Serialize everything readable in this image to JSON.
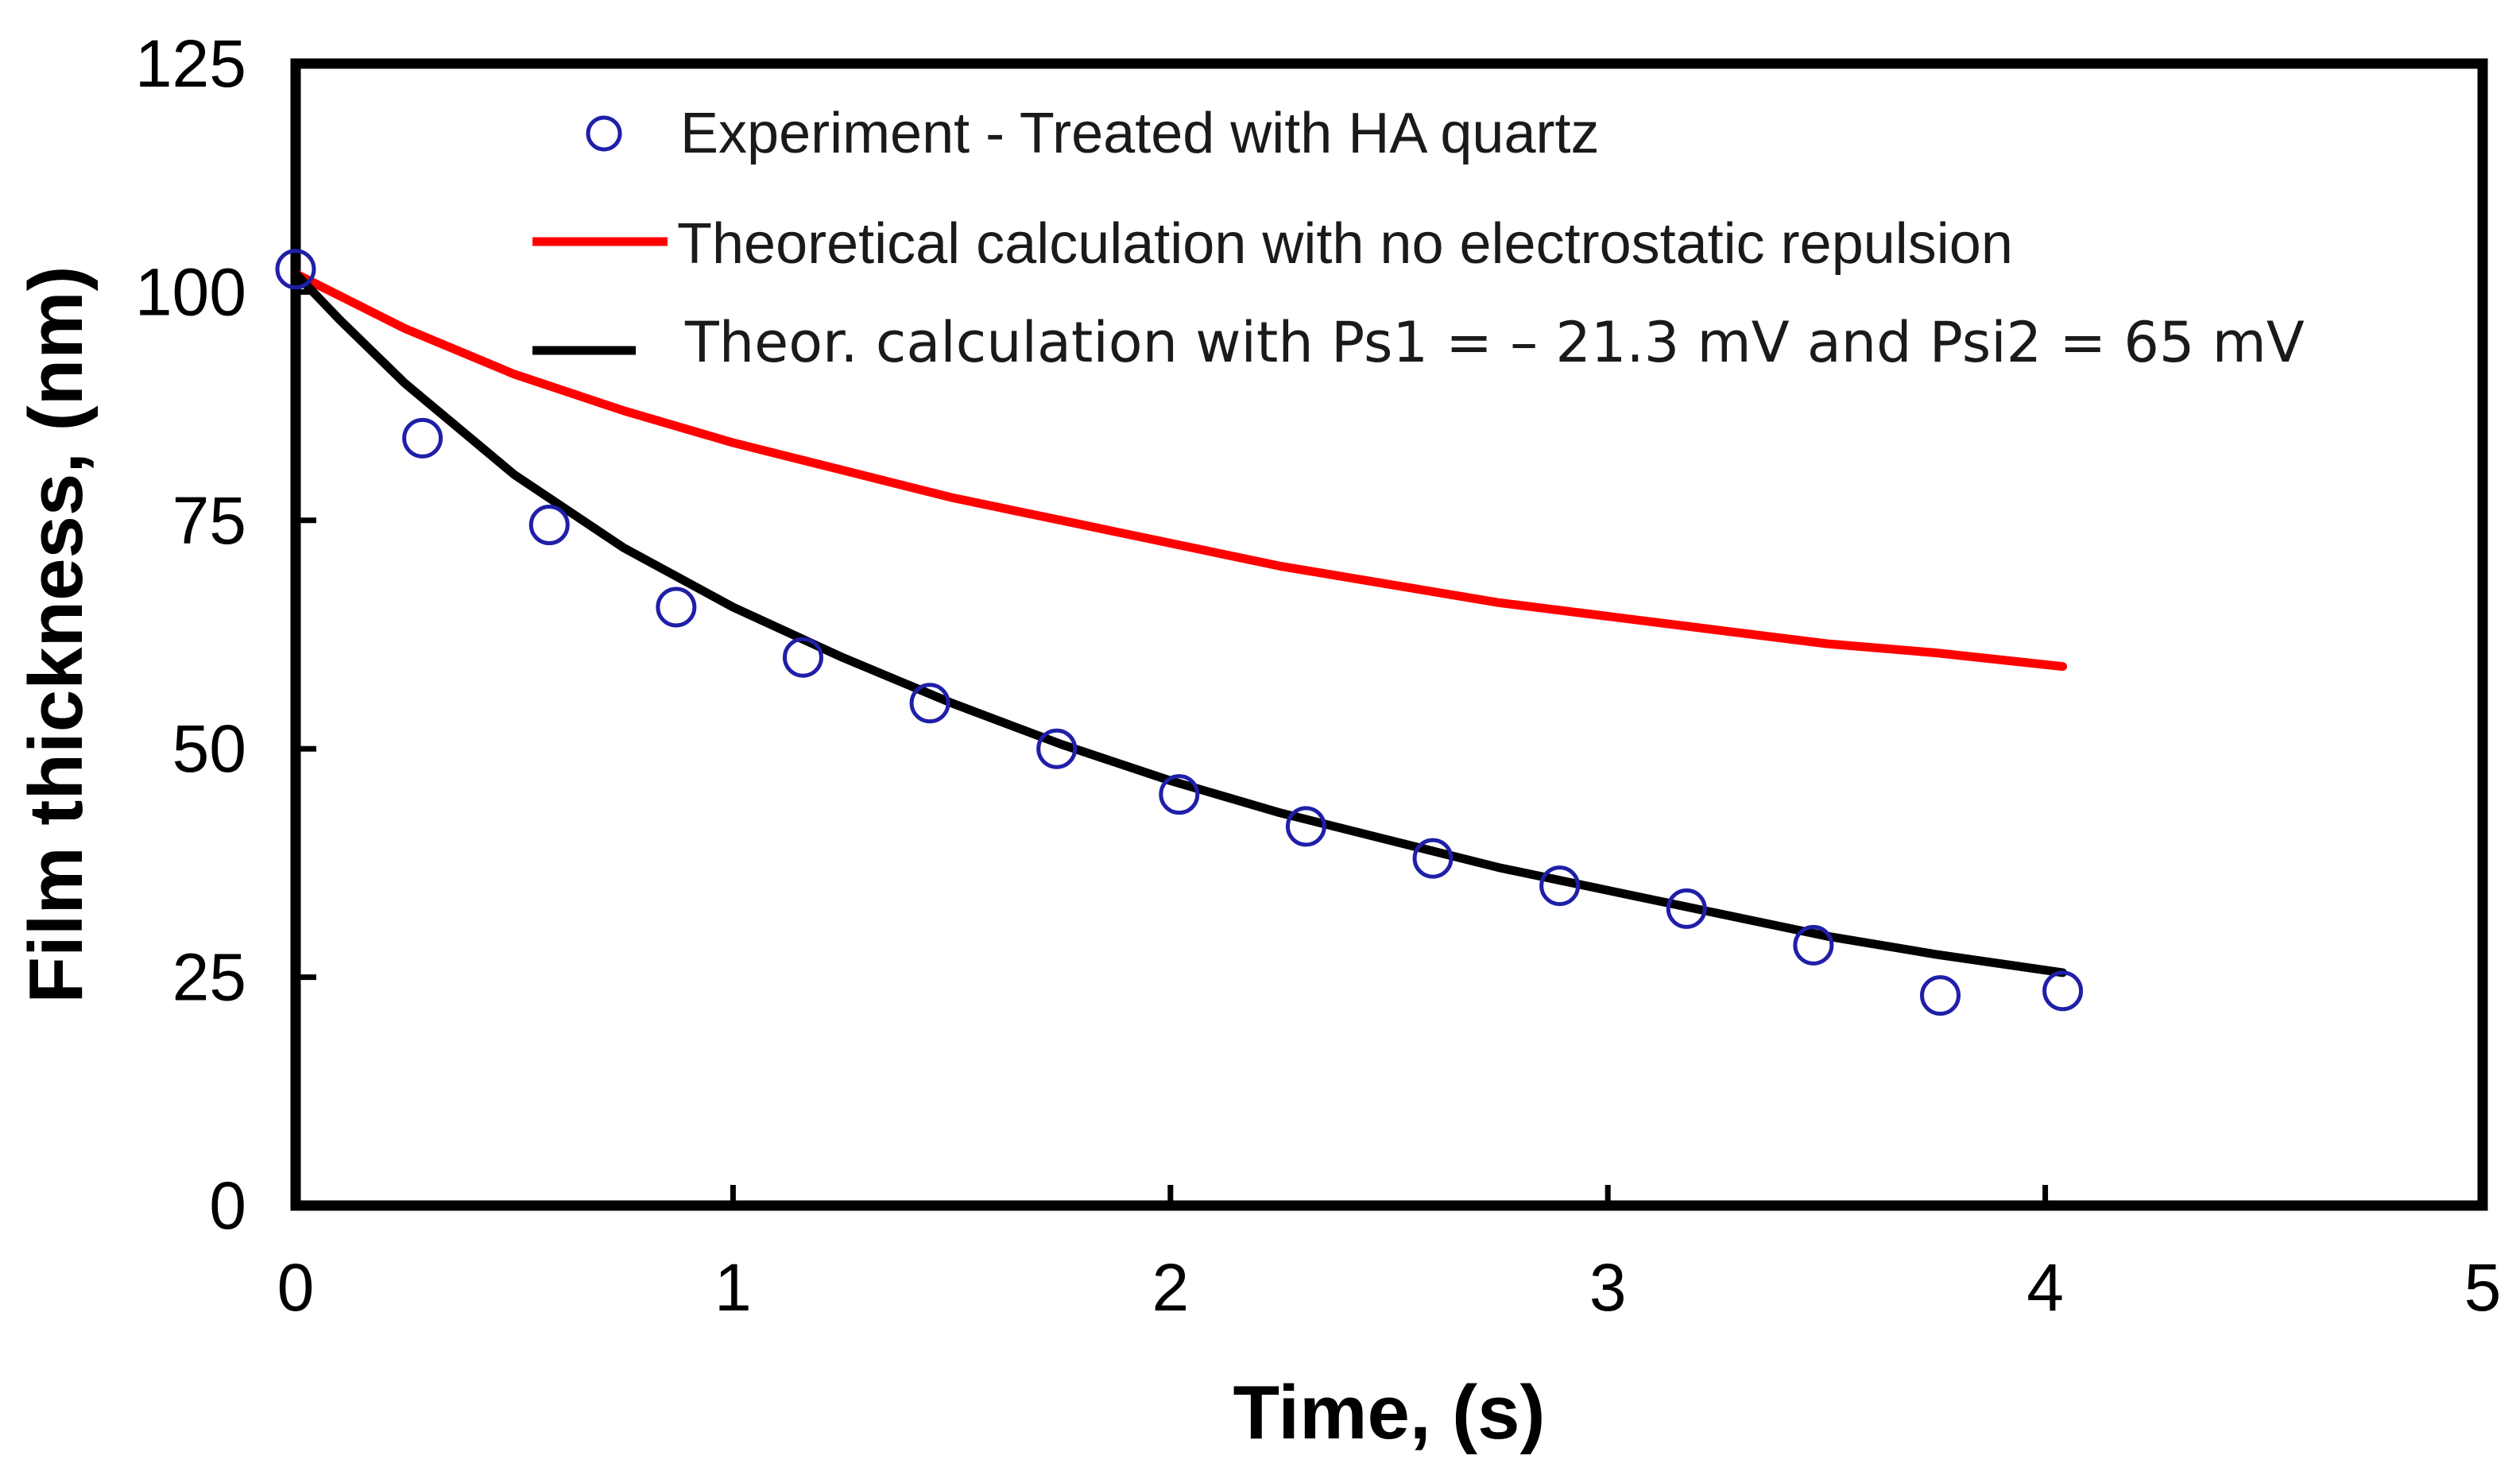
{
  "chart_data": {
    "type": "line",
    "title": "",
    "xlabel": "Time, (s)",
    "ylabel": "Film thickness, (nm)",
    "xlim": [
      0,
      5
    ],
    "ylim": [
      0,
      125
    ],
    "xticks": [
      0,
      1,
      2,
      3,
      4,
      5
    ],
    "yticks": [
      0,
      25,
      50,
      75,
      100,
      125
    ],
    "grid": false,
    "legend_position": "top",
    "series": [
      {
        "name": "Experiment - Treated with HA quartz",
        "kind": "scatter",
        "marker": "open-circle",
        "color": "#1f1fa8",
        "x": [
          0,
          0.29,
          0.58,
          0.87,
          1.16,
          1.45,
          1.74,
          2.02,
          2.31,
          2.6,
          2.89,
          3.18,
          3.47,
          3.76,
          4.04
        ],
        "y": [
          102.5,
          84,
          74.5,
          65.5,
          60,
          55,
          50,
          45,
          41.5,
          38,
          35,
          32.5,
          28.5,
          23,
          23.5
        ]
      },
      {
        "name": "Theoretical calculation with no electrostatic repulsion",
        "kind": "line",
        "color": "#ff0000",
        "x": [
          0,
          0.25,
          0.5,
          0.75,
          1.0,
          1.25,
          1.5,
          1.75,
          2.0,
          2.25,
          2.5,
          2.75,
          3.0,
          3.25,
          3.5,
          3.75,
          4.04
        ],
        "y": [
          102,
          96,
          91,
          87,
          83.5,
          80.5,
          77.5,
          75,
          72.5,
          70,
          68,
          66,
          64.5,
          63,
          61.5,
          60.5,
          59
        ]
      },
      {
        "name": "Theor. calculation with Ps1 = – 21.3 mV and Psi2 = 65 mV",
        "kind": "line",
        "color": "#000000",
        "x": [
          0,
          0.1,
          0.25,
          0.5,
          0.75,
          1.0,
          1.25,
          1.5,
          1.75,
          2.0,
          2.25,
          2.5,
          2.75,
          3.0,
          3.25,
          3.5,
          3.75,
          4.04
        ],
        "y": [
          102,
          97,
          90,
          80,
          72,
          65.5,
          60,
          55,
          50.5,
          46.5,
          43,
          40,
          37,
          34.5,
          32,
          29.5,
          27.5,
          25.5
        ]
      }
    ]
  },
  "colors": {
    "frame": "#000000",
    "background": "#ffffff"
  }
}
